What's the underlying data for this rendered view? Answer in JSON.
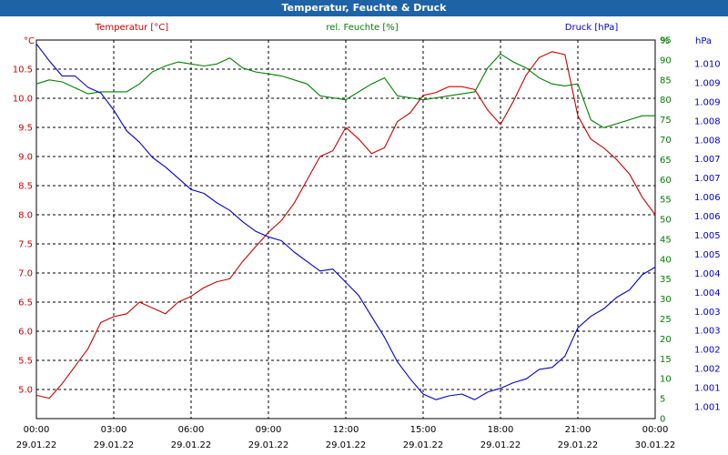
{
  "window": {
    "title": "Temperatur, Feuchte & Druck",
    "title_bg": "#1e63a6"
  },
  "chart_data": {
    "type": "line",
    "title": "Temperatur, Feuchte & Druck",
    "grid": true,
    "x_ticks": [
      {
        "time": "00:00",
        "date": "29.01.22"
      },
      {
        "time": "03:00",
        "date": "29.01.22"
      },
      {
        "time": "06:00",
        "date": "29.01.22"
      },
      {
        "time": "09:00",
        "date": "29.01.22"
      },
      {
        "time": "12:00",
        "date": "29.01.22"
      },
      {
        "time": "15:00",
        "date": "29.01.22"
      },
      {
        "time": "18:00",
        "date": "29.01.22"
      },
      {
        "time": "21:00",
        "date": "29.01.22"
      },
      {
        "time": "00:00",
        "date": "30.01.22"
      }
    ],
    "x_range_hours": [
      0,
      24
    ],
    "axes": {
      "temperature": {
        "unit": "°C",
        "color": "#cc0000",
        "ylim": [
          4.5,
          11.0
        ],
        "tick_labels": [
          "5.0",
          "5.5",
          "6.0",
          "6.5",
          "7.0",
          "7.5",
          "8.0",
          "8.5",
          "9.0",
          "9.5",
          "10.0",
          "10.5"
        ]
      },
      "humidity": {
        "unit": "%",
        "color": "#008000",
        "ylim": [
          0,
          95
        ],
        "tick_labels": [
          "0",
          "5",
          "10",
          "15",
          "20",
          "25",
          "30",
          "35",
          "40",
          "45",
          "50",
          "55",
          "60",
          "65",
          "70",
          "75",
          "80",
          "85",
          "90",
          "95"
        ]
      },
      "pressure": {
        "unit": "hPa",
        "color": "#0000cc",
        "ylim": [
          1000.4,
          1010.4
        ],
        "tick_labels": [
          "1.001",
          "1.001",
          "1.002",
          "1.002",
          "1.003",
          "1.003",
          "1.004",
          "1.004",
          "1.005",
          "1.005",
          "1.006",
          "1.006",
          "1.007",
          "1.007",
          "1.008",
          "1.008",
          "1.009",
          "1.009",
          "1.010"
        ]
      }
    },
    "series": [
      {
        "name": "Temperatur [°C]",
        "axis": "temperature",
        "color": "#cc0000",
        "x": [
          0,
          0.5,
          1.0,
          1.5,
          2.0,
          2.5,
          3.0,
          3.5,
          4.0,
          4.5,
          5.0,
          5.5,
          6.0,
          6.5,
          7.0,
          7.5,
          8.0,
          8.5,
          9.0,
          9.5,
          10.0,
          10.5,
          11.0,
          11.5,
          12.0,
          12.5,
          13.0,
          13.5,
          14.0,
          14.5,
          15.0,
          15.5,
          16.0,
          16.5,
          17.0,
          17.5,
          18.0,
          18.5,
          19.0,
          19.5,
          20.0,
          20.5,
          21.0,
          21.5,
          22.0,
          22.5,
          23.0,
          23.5,
          24.0
        ],
        "y": [
          4.9,
          4.85,
          5.1,
          5.4,
          5.7,
          6.15,
          6.25,
          6.3,
          6.5,
          6.4,
          6.3,
          6.5,
          6.6,
          6.75,
          6.85,
          6.9,
          7.2,
          7.45,
          7.7,
          7.9,
          8.2,
          8.6,
          9.0,
          9.1,
          9.5,
          9.3,
          9.05,
          9.15,
          9.6,
          9.75,
          10.05,
          10.1,
          10.2,
          10.2,
          10.15,
          9.8,
          9.55,
          9.95,
          10.4,
          10.7,
          10.8,
          10.75,
          9.7,
          9.3,
          9.15,
          8.95,
          8.7,
          8.3,
          8.0
        ]
      },
      {
        "name": "rel. Feuchte [%]",
        "axis": "humidity",
        "color": "#008000",
        "x": [
          0,
          0.5,
          1.0,
          1.5,
          2.0,
          2.5,
          3.0,
          3.5,
          4.0,
          4.5,
          5.0,
          5.5,
          6.0,
          6.5,
          7.0,
          7.5,
          8.0,
          8.5,
          9.0,
          9.5,
          10.0,
          10.5,
          11.0,
          11.5,
          12.0,
          12.5,
          13.0,
          13.5,
          14.0,
          14.5,
          15.0,
          15.5,
          16.0,
          16.5,
          17.0,
          17.5,
          18.0,
          18.5,
          19.0,
          19.5,
          20.0,
          20.5,
          21.0,
          21.5,
          22.0,
          22.5,
          23.0,
          23.5,
          24.0
        ],
        "y": [
          84,
          85,
          84.5,
          83,
          81.5,
          82,
          82,
          82,
          84,
          87,
          88.5,
          89.5,
          89,
          88.5,
          89,
          90.5,
          88,
          87,
          86.5,
          86,
          85,
          84,
          81,
          80.5,
          80,
          82,
          84,
          85.5,
          81,
          80.5,
          80,
          80.5,
          81,
          81.5,
          82,
          88,
          91.5,
          89.5,
          88,
          85.5,
          84,
          83.5,
          84,
          75,
          73,
          74,
          75,
          76,
          76
        ]
      },
      {
        "name": "Druck [hPa]",
        "axis": "pressure",
        "color": "#0000cc",
        "x": [
          0,
          0.5,
          1.0,
          1.5,
          2.0,
          2.5,
          3.0,
          3.5,
          4.0,
          4.5,
          5.0,
          5.5,
          6.0,
          6.5,
          7.0,
          7.5,
          8.0,
          8.5,
          9.0,
          9.5,
          10.0,
          10.5,
          11.0,
          11.5,
          12.0,
          12.5,
          13.0,
          13.5,
          14.0,
          14.5,
          15.0,
          15.5,
          16.0,
          16.5,
          17.0,
          17.5,
          18.0,
          18.5,
          19.0,
          19.5,
          20.0,
          20.5,
          21.0,
          21.5,
          22.0,
          22.5,
          23.0,
          23.5,
          24.0
        ],
        "y": [
          1010.3,
          1009.85,
          1009.45,
          1009.45,
          1009.15,
          1009.0,
          1008.55,
          1008.0,
          1007.7,
          1007.3,
          1007.05,
          1006.75,
          1006.45,
          1006.35,
          1006.1,
          1005.9,
          1005.6,
          1005.35,
          1005.2,
          1005.1,
          1004.8,
          1004.55,
          1004.3,
          1004.35,
          1004.0,
          1003.65,
          1003.1,
          1002.55,
          1001.9,
          1001.45,
          1001.05,
          1000.9,
          1001.0,
          1001.05,
          1000.9,
          1001.1,
          1001.2,
          1001.35,
          1001.45,
          1001.7,
          1001.75,
          1002.05,
          1002.8,
          1003.1,
          1003.3,
          1003.6,
          1003.8,
          1004.2,
          1004.4
        ]
      }
    ]
  }
}
